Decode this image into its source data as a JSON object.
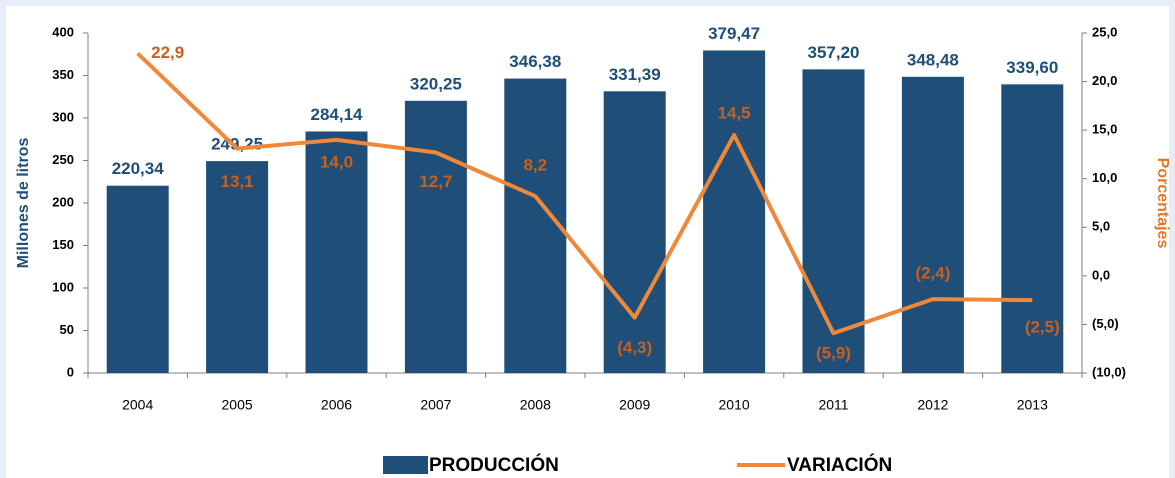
{
  "chart_data": {
    "type": "combo",
    "y_label": "Millones de litros",
    "y2_label": "Porcentajes",
    "categories": [
      "2004",
      "2005",
      "2006",
      "2007",
      "2008",
      "2009",
      "2010",
      "2011",
      "2012",
      "2013"
    ],
    "series": [
      {
        "name": "PRODUCCIÓN",
        "type": "bar",
        "color": "#1f4e79",
        "values": [
          220.34,
          249.25,
          284.14,
          320.25,
          346.38,
          331.39,
          379.47,
          357.2,
          348.48,
          339.6
        ],
        "value_labels": [
          "220,34",
          "249,25",
          "284,14",
          "320,25",
          "346,38",
          "331,39",
          "379,47",
          "357,20",
          "348,48",
          "339,60"
        ]
      },
      {
        "name": "VARIACIÓN",
        "type": "line",
        "axis": "y2",
        "color": "#f0883a",
        "values": [
          22.9,
          13.1,
          14.0,
          12.7,
          8.2,
          -4.3,
          14.5,
          -5.9,
          -2.4,
          -2.5
        ],
        "value_labels": [
          "22,9",
          "13,1",
          "14,0",
          "12,7",
          "8,2",
          "(4,3)",
          "14,5",
          "(5,9)",
          "(2,4)",
          "(2,5)"
        ]
      }
    ],
    "ylim": [
      0,
      400
    ],
    "yticks": [
      0,
      50,
      100,
      150,
      200,
      250,
      300,
      350,
      400
    ],
    "y2lim": [
      -10,
      25
    ],
    "y2ticks": [
      {
        "value": -10,
        "label": "(10,0)"
      },
      {
        "value": -5,
        "label": "(5,0)"
      },
      {
        "value": 0,
        "label": "0,0"
      },
      {
        "value": 5,
        "label": "5,0"
      },
      {
        "value": 10,
        "label": "10,0"
      },
      {
        "value": 15,
        "label": "15,0"
      },
      {
        "value": 20,
        "label": "20,0"
      },
      {
        "value": 25,
        "label": "25,0"
      }
    ],
    "legend": "bottom"
  }
}
